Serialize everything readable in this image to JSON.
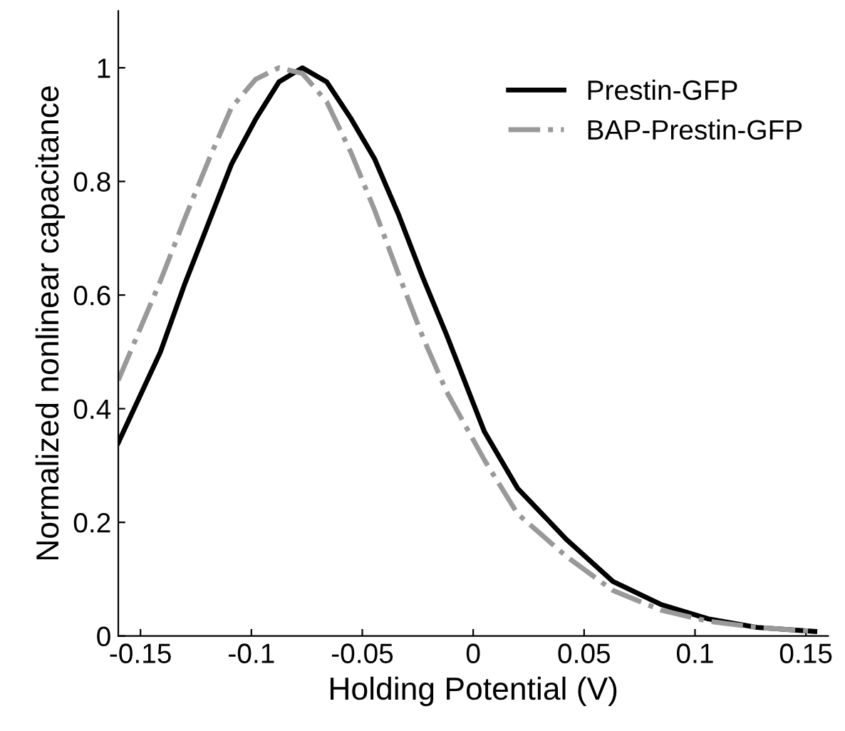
{
  "chart_data": {
    "type": "line",
    "xlabel": "Holding Potential (V)",
    "ylabel": "Normalized nonlinear capacitance",
    "xlim": [
      -0.16,
      0.16
    ],
    "ylim": [
      0,
      1.1
    ],
    "xticks": [
      -0.15,
      -0.1,
      -0.05,
      0,
      0.05,
      0.1,
      0.15
    ],
    "yticks": [
      0,
      0.2,
      0.4,
      0.6,
      0.8,
      1
    ],
    "grid": false,
    "legend": "top right",
    "marker": "none",
    "series": [
      {
        "name": "Prestin-GFP",
        "color": "#000000",
        "line_style": "solid",
        "x": [
          -0.16,
          -0.141,
          -0.13,
          -0.119,
          -0.109,
          -0.098,
          -0.0876,
          -0.077,
          -0.066,
          -0.055,
          -0.0445,
          -0.0335,
          -0.0226,
          -0.012,
          0,
          0.005,
          0.02,
          0.042,
          0.063,
          0.085,
          0.106,
          0.128,
          0.154
        ],
        "values": [
          0.34,
          0.5,
          0.62,
          0.73,
          0.83,
          0.91,
          0.975,
          1.0,
          0.975,
          0.91,
          0.84,
          0.74,
          0.63,
          0.53,
          0.41,
          0.36,
          0.26,
          0.17,
          0.096,
          0.055,
          0.03,
          0.015,
          0.008
        ]
      },
      {
        "name": "BAP-Prestin-GFP",
        "color": "#999999",
        "line_style": "dashdot",
        "x": [
          -0.16,
          -0.141,
          -0.13,
          -0.119,
          -0.109,
          -0.098,
          -0.0876,
          -0.077,
          -0.066,
          -0.055,
          -0.0445,
          -0.0335,
          -0.0226,
          -0.012,
          0.005,
          0.02,
          0.042,
          0.063,
          0.085,
          0.106,
          0.128,
          0.154
        ],
        "values": [
          0.45,
          0.625,
          0.735,
          0.84,
          0.93,
          0.98,
          1.0,
          0.99,
          0.94,
          0.85,
          0.75,
          0.635,
          0.525,
          0.43,
          0.31,
          0.215,
          0.14,
          0.08,
          0.045,
          0.026,
          0.015,
          0.008
        ]
      }
    ]
  }
}
